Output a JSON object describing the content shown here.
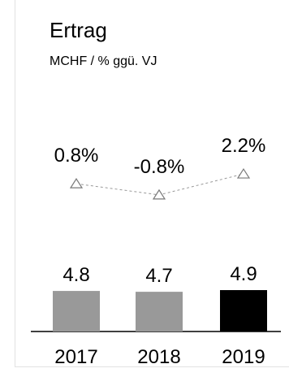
{
  "chart_data": {
    "type": "bar",
    "title": "Ertrag",
    "subtitle": "MCHF / % ggü. VJ",
    "categories": [
      "2017",
      "2018",
      "2019"
    ],
    "series": [
      {
        "values": [
          4.8,
          4.7,
          4.9
        ],
        "labels": [
          "4.8",
          "4.7",
          "4.9"
        ],
        "colors": [
          "#999999",
          "#999999",
          "#000000"
        ]
      },
      {
        "type": "line",
        "marker": "triangle",
        "values": [
          0.8,
          -0.8,
          2.2
        ],
        "labels": [
          "0.8%",
          "-0.8%",
          "2.2%"
        ],
        "color": "#999999"
      }
    ],
    "grid": false,
    "legend": "none"
  }
}
